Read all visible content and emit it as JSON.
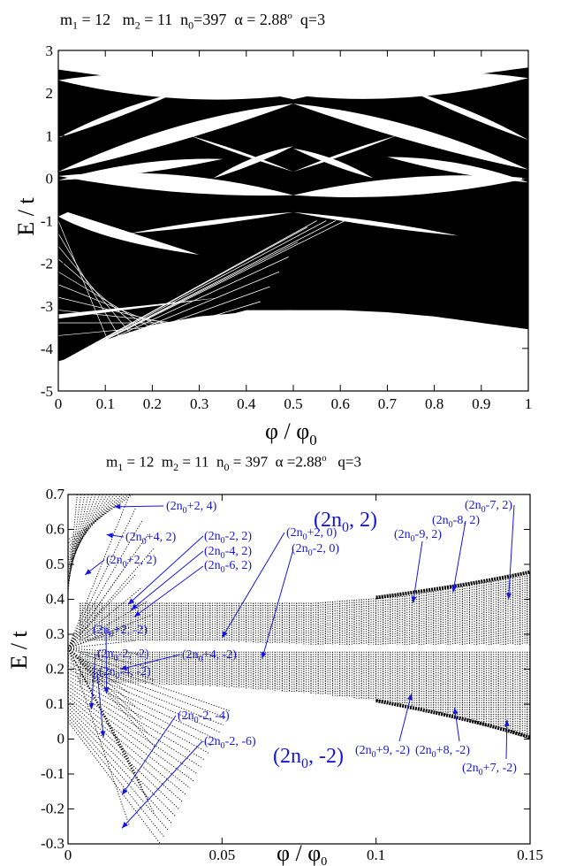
{
  "top_title": {
    "m1": "m",
    "m1_sub": "1",
    "m1_val": " = 12",
    "m2": "m",
    "m2_sub": "2",
    "m2_val": " = 11",
    "n0": "n",
    "n0_sub": "0",
    "n0_val": "=397",
    "alpha": "α = 2.88",
    "alpha_sup": "o",
    "q": "q=3"
  },
  "bottom_title": {
    "m1": "m",
    "m1_sub": "1",
    "m1_val": " = 12",
    "m2": "m",
    "m2_sub": "2",
    "m2_val": " = 11",
    "n0": "n",
    "n0_sub": "0",
    "n0_val": " = 397",
    "alpha": "α =2.88",
    "alpha_sup": "o",
    "q": "q=3"
  },
  "chart_data": [
    {
      "type": "scatter",
      "title": "m1 = 12  m2 = 11  n0=397  α = 2.88° q=3",
      "xlabel": "φ / φ0",
      "ylabel": "E / t",
      "xlim": [
        0,
        1
      ],
      "ylim": [
        -5,
        3
      ],
      "xticks": [
        "0",
        "0.1",
        "0.2",
        "0.3",
        "0.4",
        "0.5",
        "0.6",
        "0.7",
        "0.8",
        "0.9",
        "1"
      ],
      "yticks": [
        "-5",
        "-4",
        "-3",
        "-2",
        "-1",
        "0",
        "1",
        "2",
        "3"
      ],
      "band_edges": {
        "x": [
          0,
          0.1,
          0.2,
          0.3,
          0.4,
          0.5,
          0.6,
          0.7,
          0.8,
          0.9,
          1.0
        ],
        "upper_max": [
          2.55,
          2.4,
          2.3,
          2.25,
          2.1,
          1.85,
          2.1,
          2.25,
          2.35,
          2.45,
          2.6
        ],
        "lower_min": [
          -4.35,
          -3.8,
          -3.45,
          -3.25,
          -3.15,
          -3.1,
          -3.1,
          -3.15,
          -3.25,
          -3.4,
          -3.55
        ]
      }
    },
    {
      "type": "scatter",
      "title": "m1 = 12  m2 = 11 n0 = 397  α =2.88° q=3",
      "xlabel": "φ / φ0",
      "ylabel": "E / t",
      "xlim": [
        0,
        0.15
      ],
      "ylim": [
        -0.3,
        0.7
      ],
      "xticks": [
        "0",
        "0.05",
        "0.1",
        "0.15"
      ],
      "yticks": [
        "-0.3",
        "-0.2",
        "-0.1",
        "0",
        "0.1",
        "0.2",
        "0.3",
        "0.4",
        "0.5",
        "0.6",
        "0.7"
      ],
      "gap_edges": {
        "x": [
          0.02,
          0.05,
          0.08,
          0.11,
          0.15
        ],
        "upper_band": [
          [
            0.39,
            0.28
          ],
          [
            0.39,
            0.28
          ],
          [
            0.39,
            0.27
          ],
          [
            0.41,
            0.27
          ],
          [
            0.47,
            0.27
          ]
        ],
        "lower_band": [
          [
            0.25,
            0.16
          ],
          [
            0.25,
            0.15
          ],
          [
            0.25,
            0.13
          ],
          [
            0.25,
            0.1
          ],
          [
            0.25,
            0.0
          ]
        ]
      },
      "annotations": [
        {
          "text": "(2n0+2, 4)",
          "x": 0.015,
          "y": 0.665
        },
        {
          "text": "(2n0+4, 2)",
          "x": 0.0125,
          "y": 0.585
        },
        {
          "text": "(2n0+2, 2)",
          "x": 0.0055,
          "y": 0.47
        },
        {
          "text": "(2n0-2, 2)",
          "x": 0.0195,
          "y": 0.385
        },
        {
          "text": "(2n0-4, 2)",
          "x": 0.0205,
          "y": 0.37
        },
        {
          "text": "(2n0-6, 2)",
          "x": 0.0215,
          "y": 0.35
        },
        {
          "text": "(2n0+2, 0)",
          "x": 0.05,
          "y": 0.29
        },
        {
          "text": "(2n0-2, 0)",
          "x": 0.063,
          "y": 0.23
        },
        {
          "text": "(2n0-9, 2)",
          "x": 0.112,
          "y": 0.39
        },
        {
          "text": "(2n0-8, 2)",
          "x": 0.125,
          "y": 0.42
        },
        {
          "text": "(2n0-7, 2)",
          "x": 0.143,
          "y": 0.4
        },
        {
          "text": "(2n0+2, -2)",
          "x": 0.0125,
          "y": 0.13
        },
        {
          "text": "(2n0+4, -2)",
          "x": 0.017,
          "y": 0.2
        },
        {
          "text": "(2n0-2, -2)",
          "x": 0.0075,
          "y": 0.085
        },
        {
          "text": "(2n0-4, -2)",
          "x": 0.0115,
          "y": 0.005
        },
        {
          "text": "(2n0+9, -2)",
          "x": 0.1115,
          "y": 0.13
        },
        {
          "text": "(2n0+8, -2)",
          "x": 0.1255,
          "y": 0.09
        },
        {
          "text": "(2n0+7, -2)",
          "x": 0.1425,
          "y": 0.055
        },
        {
          "text": "(2n0-2, -4)",
          "x": 0.0175,
          "y": -0.16
        },
        {
          "text": "(2n0-2, -6)",
          "x": 0.0175,
          "y": -0.255
        }
      ],
      "region_labels": [
        {
          "text": "(2n0, 2)",
          "x": 0.1,
          "y": 0.625
        },
        {
          "text": "(2n0, -2)",
          "x": 0.1,
          "y": -0.065
        }
      ]
    }
  ],
  "labels": {
    "top_ylabel": "E / t",
    "top_xlabel_phi": "φ / φ",
    "top_xlabel_sub": "0",
    "bot_ylabel": "E / t",
    "bot_xlabel_phi": "φ / φ",
    "bot_xlabel_sub": "0",
    "bot_region_a": "(2n",
    "bot_region_a_sub": "0",
    "bot_region_a_end": ", 2)",
    "bot_region_b": "(2n",
    "bot_region_b_sub": "0",
    "bot_region_b_end": ", -2)"
  },
  "annotation_parts": [
    {
      "a": "(2n",
      "s": "0",
      "b": "+2, 4)"
    },
    {
      "a": "(2n",
      "s": "0",
      "b": "+4, 2)"
    },
    {
      "a": "(2n",
      "s": "0",
      "b": "+2, 2)"
    },
    {
      "a": "(2n",
      "s": "0",
      "b": "-2, 2)"
    },
    {
      "a": "(2n",
      "s": "0",
      "b": "-4, 2)"
    },
    {
      "a": "(2n",
      "s": "0",
      "b": "-6, 2)"
    },
    {
      "a": "(2n",
      "s": "0",
      "b": "+2, 0)"
    },
    {
      "a": "(2n",
      "s": "0",
      "b": "-2, 0)"
    },
    {
      "a": "(2n",
      "s": "0",
      "b": "-9, 2)"
    },
    {
      "a": "(2n",
      "s": "0",
      "b": "-8, 2)"
    },
    {
      "a": "(2n",
      "s": "0",
      "b": "-7, 2)"
    },
    {
      "a": "(2n",
      "s": "0",
      "b": "+2, -2)"
    },
    {
      "a": "(2n",
      "s": "0",
      "b": "+4, -2)"
    },
    {
      "a": "(2n",
      "s": "0",
      "b": "-2, -2)"
    },
    {
      "a": "(2n",
      "s": "0",
      "b": "-4, -2)"
    },
    {
      "a": "(2n",
      "s": "0",
      "b": "+9, -2)"
    },
    {
      "a": "(2n",
      "s": "0",
      "b": "+8, -2)"
    },
    {
      "a": "(2n",
      "s": "0",
      "b": "+7, -2)"
    },
    {
      "a": "(2n",
      "s": "0",
      "b": "-2, -4)"
    },
    {
      "a": "(2n",
      "s": "0",
      "b": "-2, -6)"
    }
  ],
  "colors": {
    "annotation": "#1515e0",
    "ink": "#000000"
  }
}
